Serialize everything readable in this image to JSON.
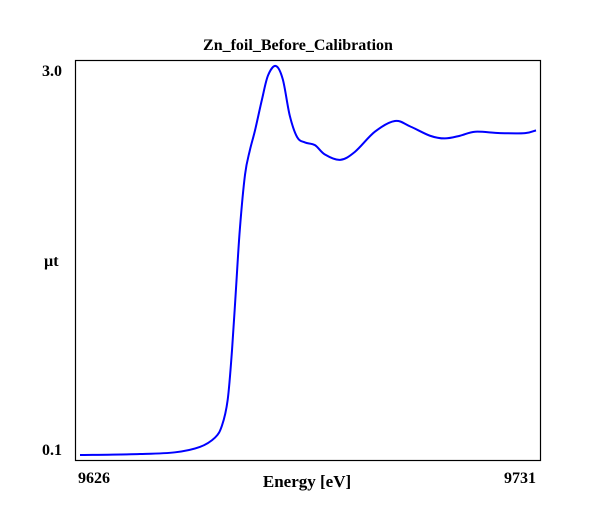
{
  "chart_data": {
    "type": "line",
    "title": "Zn_foil_Before_Calibration",
    "xlabel": "Energy [eV]",
    "ylabel": "µt",
    "xlim": [
      9626,
      9731
    ],
    "ylim": [
      0.1,
      3.0
    ],
    "x_tick_labels": [
      "9626",
      "9731"
    ],
    "y_tick_labels": [
      "3.0",
      "0.1"
    ],
    "grid": false,
    "line_color": "#0000ff",
    "series": [
      {
        "name": "Zn_foil_Before_Calibration",
        "x": [
          9626,
          9639.8,
          9647.9,
          9653.6,
          9657.1,
          9658.7,
          9660.0,
          9661.0,
          9661.9,
          9662.8,
          9664.0,
          9665.1,
          9666.3,
          9667.9,
          9669.3,
          9671.1,
          9672.7,
          9674.3,
          9676.0,
          9677.8,
          9680.1,
          9682.4,
          9685.9,
          9689.3,
          9693.9,
          9698.5,
          9702.0,
          9706.6,
          9710.0,
          9713.5,
          9717.0,
          9722.7,
          9728.5,
          9731
        ],
        "y": [
          0.1,
          0.107,
          0.12,
          0.16,
          0.23,
          0.32,
          0.51,
          0.88,
          1.33,
          1.78,
          2.19,
          2.37,
          2.52,
          2.75,
          2.93,
          3.0,
          2.9,
          2.63,
          2.47,
          2.43,
          2.41,
          2.34,
          2.3,
          2.36,
          2.51,
          2.59,
          2.55,
          2.48,
          2.46,
          2.48,
          2.51,
          2.5,
          2.5,
          2.52
        ]
      }
    ]
  }
}
